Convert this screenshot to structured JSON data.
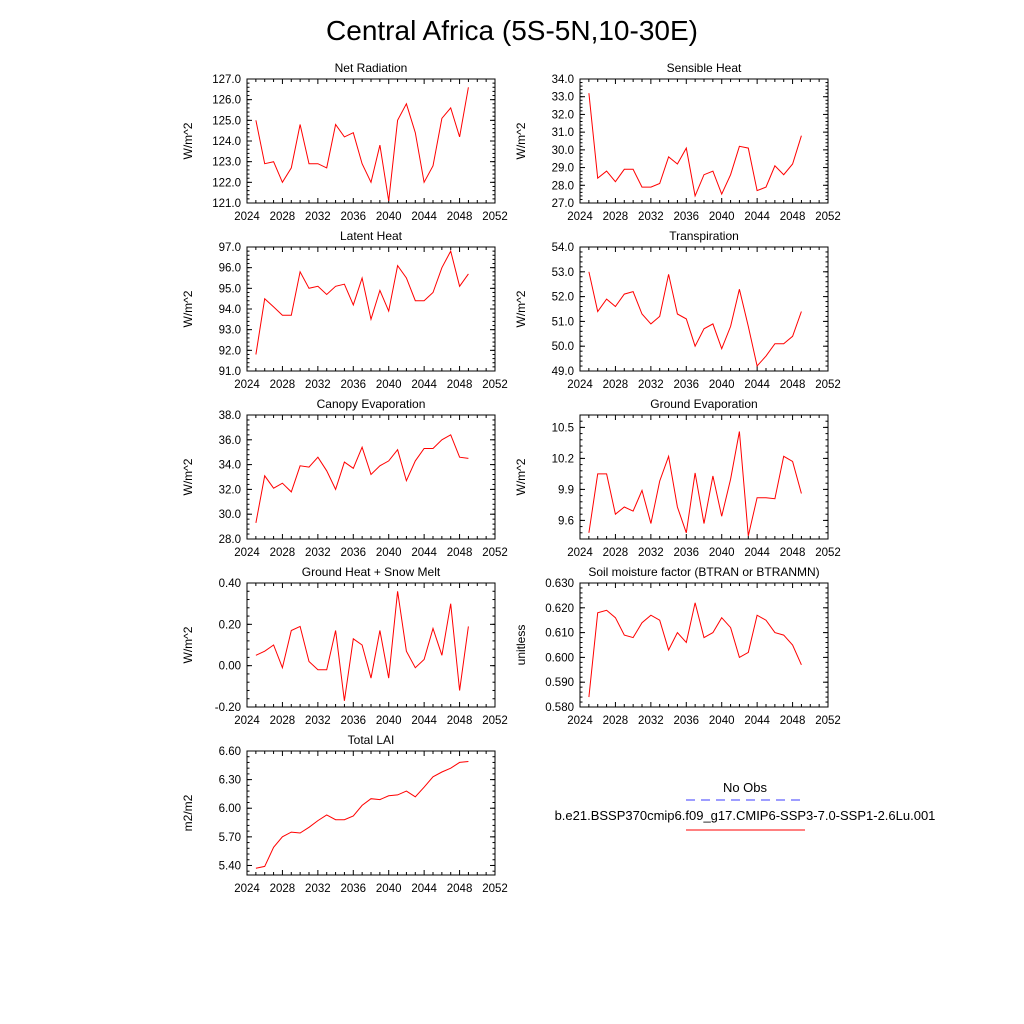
{
  "title": "Central Africa (5S-5N,10-30E)",
  "series_color": "#ff0000",
  "legend": {
    "obs_label": "No Obs",
    "obs_color": "#3b3bff",
    "model_label": "b.e21.BSSP370cmip6.f09_g17.CMIP6-SSP3-7.0-SSP1-2.6Lu.001",
    "model_color": "#ff0000"
  },
  "chart_data": [
    {
      "type": "line",
      "title": "Net Radiation",
      "ylabel": "W/m^2",
      "xlim": [
        2024,
        2052
      ],
      "ylim": [
        121.0,
        127.0
      ],
      "x_ticks": [
        2024,
        2028,
        2032,
        2036,
        2040,
        2044,
        2048,
        2052
      ],
      "y_ticks": [
        "121.0",
        "122.0",
        "123.0",
        "124.0",
        "125.0",
        "126.0",
        "127.0"
      ],
      "x": [
        2025,
        2026,
        2027,
        2028,
        2029,
        2030,
        2031,
        2032,
        2033,
        2034,
        2035,
        2036,
        2037,
        2038,
        2039,
        2040,
        2041,
        2042,
        2043,
        2044,
        2045,
        2046,
        2047,
        2048,
        2049
      ],
      "y": [
        125.0,
        122.9,
        123.0,
        122.0,
        122.7,
        124.8,
        122.9,
        122.9,
        122.7,
        124.8,
        124.2,
        124.4,
        122.9,
        122.0,
        123.8,
        121.1,
        125.0,
        125.8,
        124.4,
        122.0,
        122.8,
        125.1,
        125.6,
        124.2,
        126.6
      ]
    },
    {
      "type": "line",
      "title": "Sensible Heat",
      "ylabel": "W/m^2",
      "xlim": [
        2024,
        2052
      ],
      "ylim": [
        27.0,
        34.0
      ],
      "x_ticks": [
        2024,
        2028,
        2032,
        2036,
        2040,
        2044,
        2048,
        2052
      ],
      "y_ticks": [
        "27.0",
        "28.0",
        "29.0",
        "30.0",
        "31.0",
        "32.0",
        "33.0",
        "34.0"
      ],
      "x": [
        2025,
        2026,
        2027,
        2028,
        2029,
        2030,
        2031,
        2032,
        2033,
        2034,
        2035,
        2036,
        2037,
        2038,
        2039,
        2040,
        2041,
        2042,
        2043,
        2044,
        2045,
        2046,
        2047,
        2048,
        2049
      ],
      "y": [
        33.2,
        28.4,
        28.8,
        28.2,
        28.9,
        28.9,
        27.9,
        27.9,
        28.1,
        29.6,
        29.2,
        30.1,
        27.4,
        28.6,
        28.8,
        27.5,
        28.6,
        30.2,
        30.1,
        27.7,
        27.9,
        29.1,
        28.6,
        29.2,
        30.8
      ]
    },
    {
      "type": "line",
      "title": "Latent Heat",
      "ylabel": "W/m^2",
      "xlim": [
        2024,
        2052
      ],
      "ylim": [
        91.0,
        97.0
      ],
      "x_ticks": [
        2024,
        2028,
        2032,
        2036,
        2040,
        2044,
        2048,
        2052
      ],
      "y_ticks": [
        "91.0",
        "92.0",
        "93.0",
        "94.0",
        "95.0",
        "96.0",
        "97.0"
      ],
      "x": [
        2025,
        2026,
        2027,
        2028,
        2029,
        2030,
        2031,
        2032,
        2033,
        2034,
        2035,
        2036,
        2037,
        2038,
        2039,
        2040,
        2041,
        2042,
        2043,
        2044,
        2045,
        2046,
        2047,
        2048,
        2049
      ],
      "y": [
        91.8,
        94.5,
        94.1,
        93.7,
        93.7,
        95.8,
        95.0,
        95.1,
        94.7,
        95.1,
        95.2,
        94.2,
        95.5,
        93.5,
        94.9,
        93.9,
        96.1,
        95.5,
        94.4,
        94.4,
        94.8,
        96.0,
        96.8,
        95.1,
        95.7
      ]
    },
    {
      "type": "line",
      "title": "Transpiration",
      "ylabel": "W/m^2",
      "xlim": [
        2024,
        2052
      ],
      "ylim": [
        49.0,
        54.0
      ],
      "x_ticks": [
        2024,
        2028,
        2032,
        2036,
        2040,
        2044,
        2048,
        2052
      ],
      "y_ticks": [
        "49.0",
        "50.0",
        "51.0",
        "52.0",
        "53.0",
        "54.0"
      ],
      "x": [
        2025,
        2026,
        2027,
        2028,
        2029,
        2030,
        2031,
        2032,
        2033,
        2034,
        2035,
        2036,
        2037,
        2038,
        2039,
        2040,
        2041,
        2042,
        2043,
        2044,
        2045,
        2046,
        2047,
        2048,
        2049
      ],
      "y": [
        53.0,
        51.4,
        51.9,
        51.6,
        52.1,
        52.2,
        51.3,
        50.9,
        51.2,
        52.9,
        51.3,
        51.1,
        50.0,
        50.7,
        50.9,
        49.9,
        50.8,
        52.3,
        50.8,
        49.2,
        49.6,
        50.1,
        50.1,
        50.4,
        51.4
      ]
    },
    {
      "type": "line",
      "title": "Canopy Evaporation",
      "ylabel": "W/m^2",
      "xlim": [
        2024,
        2052
      ],
      "ylim": [
        28.0,
        38.0
      ],
      "x_ticks": [
        2024,
        2028,
        2032,
        2036,
        2040,
        2044,
        2048,
        2052
      ],
      "y_ticks": [
        "28.0",
        "30.0",
        "32.0",
        "34.0",
        "36.0",
        "38.0"
      ],
      "x": [
        2025,
        2026,
        2027,
        2028,
        2029,
        2030,
        2031,
        2032,
        2033,
        2034,
        2035,
        2036,
        2037,
        2038,
        2039,
        2040,
        2041,
        2042,
        2043,
        2044,
        2045,
        2046,
        2047,
        2048,
        2049
      ],
      "y": [
        29.3,
        33.1,
        32.1,
        32.5,
        31.8,
        33.9,
        33.8,
        34.6,
        33.5,
        32.0,
        34.2,
        33.7,
        35.4,
        33.2,
        33.9,
        34.3,
        35.2,
        32.7,
        34.3,
        35.3,
        35.3,
        36.0,
        36.4,
        34.6,
        34.5
      ]
    },
    {
      "type": "line",
      "title": "Ground Evaporation",
      "ylabel": "W/m^2",
      "xlim": [
        2024,
        2052
      ],
      "ylim": [
        9.42,
        10.62
      ],
      "x_ticks": [
        2024,
        2028,
        2032,
        2036,
        2040,
        2044,
        2048,
        2052
      ],
      "y_ticks": [
        "9.6",
        "9.9",
        "10.2",
        "10.5"
      ],
      "x": [
        2025,
        2026,
        2027,
        2028,
        2029,
        2030,
        2031,
        2032,
        2033,
        2034,
        2035,
        2036,
        2037,
        2038,
        2039,
        2040,
        2041,
        2042,
        2043,
        2044,
        2045,
        2046,
        2047,
        2048,
        2049
      ],
      "y": [
        9.48,
        10.05,
        10.05,
        9.66,
        9.73,
        9.69,
        9.89,
        9.57,
        9.98,
        10.22,
        9.73,
        9.48,
        10.06,
        9.57,
        10.03,
        9.64,
        10.0,
        10.46,
        9.45,
        9.82,
        9.82,
        9.81,
        10.22,
        10.17,
        9.86
      ]
    },
    {
      "type": "line",
      "title": "Ground Heat + Snow Melt",
      "ylabel": "W/m^2",
      "xlim": [
        2024,
        2052
      ],
      "ylim": [
        -0.2,
        0.4
      ],
      "x_ticks": [
        2024,
        2028,
        2032,
        2036,
        2040,
        2044,
        2048,
        2052
      ],
      "y_ticks": [
        "-0.20",
        "0.00",
        "0.20",
        "0.40"
      ],
      "x": [
        2025,
        2026,
        2027,
        2028,
        2029,
        2030,
        2031,
        2032,
        2033,
        2034,
        2035,
        2036,
        2037,
        2038,
        2039,
        2040,
        2041,
        2042,
        2043,
        2044,
        2045,
        2046,
        2047,
        2048,
        2049
      ],
      "y": [
        0.05,
        0.07,
        0.1,
        -0.01,
        0.17,
        0.19,
        0.02,
        -0.02,
        -0.02,
        0.17,
        -0.17,
        0.13,
        0.1,
        -0.06,
        0.17,
        -0.06,
        0.36,
        0.07,
        -0.01,
        0.03,
        0.18,
        0.05,
        0.3,
        -0.12,
        0.19
      ]
    },
    {
      "type": "line",
      "title": "Soil moisture factor (BTRAN or BTRANMN)",
      "ylabel": "unitless",
      "xlim": [
        2024,
        2052
      ],
      "ylim": [
        0.58,
        0.63
      ],
      "x_ticks": [
        2024,
        2028,
        2032,
        2036,
        2040,
        2044,
        2048,
        2052
      ],
      "y_ticks": [
        "0.580",
        "0.590",
        "0.600",
        "0.610",
        "0.620",
        "0.630"
      ],
      "x": [
        2025,
        2026,
        2027,
        2028,
        2029,
        2030,
        2031,
        2032,
        2033,
        2034,
        2035,
        2036,
        2037,
        2038,
        2039,
        2040,
        2041,
        2042,
        2043,
        2044,
        2045,
        2046,
        2047,
        2048,
        2049
      ],
      "y": [
        0.584,
        0.618,
        0.619,
        0.616,
        0.609,
        0.608,
        0.614,
        0.617,
        0.615,
        0.603,
        0.61,
        0.606,
        0.622,
        0.608,
        0.61,
        0.616,
        0.612,
        0.6,
        0.602,
        0.617,
        0.615,
        0.61,
        0.609,
        0.605,
        0.597
      ]
    },
    {
      "type": "line",
      "title": "Total LAI",
      "ylabel": "m2/m2",
      "xlim": [
        2024,
        2052
      ],
      "ylim": [
        5.3,
        6.6
      ],
      "x_ticks": [
        2024,
        2028,
        2032,
        2036,
        2040,
        2044,
        2048,
        2052
      ],
      "y_ticks": [
        "5.40",
        "5.70",
        "6.00",
        "6.30",
        "6.60"
      ],
      "x": [
        2025,
        2026,
        2027,
        2028,
        2029,
        2030,
        2031,
        2032,
        2033,
        2034,
        2035,
        2036,
        2037,
        2038,
        2039,
        2040,
        2041,
        2042,
        2043,
        2044,
        2045,
        2046,
        2047,
        2048,
        2049
      ],
      "y": [
        5.37,
        5.39,
        5.59,
        5.7,
        5.75,
        5.74,
        5.8,
        5.87,
        5.93,
        5.88,
        5.88,
        5.92,
        6.03,
        6.1,
        6.09,
        6.13,
        6.14,
        6.18,
        6.12,
        6.22,
        6.33,
        6.38,
        6.42,
        6.48,
        6.49
      ]
    }
  ]
}
